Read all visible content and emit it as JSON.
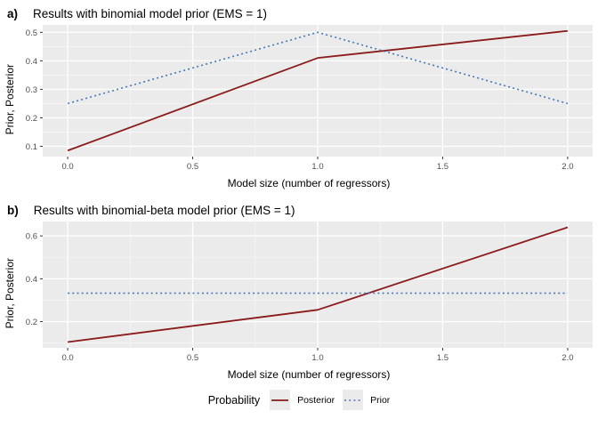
{
  "colors": {
    "posterior_line": "#8B1A1A",
    "prior_line": "#4678B8",
    "panel_background": "#EBEBEB",
    "grid_major": "#FFFFFF",
    "grid_minor": "#F7F7F7",
    "tick_label": "#4D4D4D",
    "tick_mark": "#333333",
    "legend_key_background": "#EBEBEB"
  },
  "legend": {
    "title": "Probability",
    "position": "bottom",
    "items": [
      {
        "label": "Posterior",
        "style": "solid",
        "color": "#8B1A1A"
      },
      {
        "label": "Prior",
        "style": "dotted",
        "color": "#4678B8"
      }
    ]
  },
  "chart_data": [
    {
      "id": "a",
      "type": "line",
      "panel_tag": "a)",
      "title": "Results with binomial model prior (EMS = 1)",
      "xlabel": "Model size (number of regressors)",
      "ylabel": "Prior, Posterior",
      "x": [
        0,
        1,
        2
      ],
      "series": [
        {
          "name": "Posterior",
          "style": "solid",
          "color": "#8B1A1A",
          "values": [
            0.085,
            0.41,
            0.505
          ]
        },
        {
          "name": "Prior",
          "style": "dotted",
          "color": "#4678B8",
          "values": [
            0.25,
            0.5,
            0.25
          ]
        }
      ],
      "xlim": [
        -0.1,
        2.1
      ],
      "ylim": [
        0.064,
        0.526
      ],
      "xticks": [
        0,
        0.5,
        1,
        1.5,
        2
      ],
      "yticks": [
        0.1,
        0.2,
        0.3,
        0.4,
        0.5
      ],
      "xtick_labels": [
        "0.0",
        "0.5",
        "1.0",
        "1.5",
        "2.0"
      ],
      "ytick_labels": [
        "0.1",
        "0.2",
        "0.3",
        "0.4",
        "0.5"
      ],
      "grid": true
    },
    {
      "id": "b",
      "type": "line",
      "panel_tag": "b)",
      "title": "Results with binomial-beta model prior (EMS = 1)",
      "xlabel": "Model size (number of regressors)",
      "ylabel": "Prior, Posterior",
      "x": [
        0,
        1,
        2
      ],
      "series": [
        {
          "name": "Posterior",
          "style": "solid",
          "color": "#8B1A1A",
          "values": [
            0.105,
            0.255,
            0.64
          ]
        },
        {
          "name": "Prior",
          "style": "dotted",
          "color": "#4678B8",
          "values": [
            0.333,
            0.333,
            0.333
          ]
        }
      ],
      "xlim": [
        -0.1,
        2.1
      ],
      "ylim": [
        0.078,
        0.667
      ],
      "xticks": [
        0,
        0.5,
        1,
        1.5,
        2
      ],
      "yticks": [
        0.2,
        0.4,
        0.6
      ],
      "xtick_labels": [
        "0.0",
        "0.5",
        "1.0",
        "1.5",
        "2.0"
      ],
      "ytick_labels": [
        "0.2",
        "0.4",
        "0.6"
      ],
      "grid": true
    }
  ]
}
